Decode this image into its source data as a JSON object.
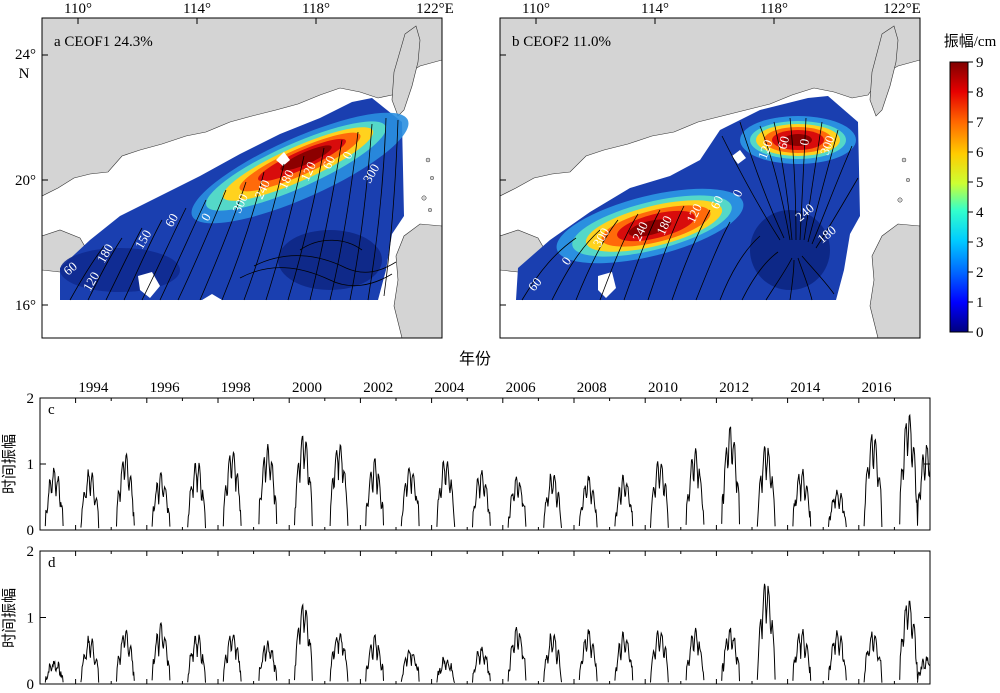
{
  "map_a": {
    "label": "a CEOF1 24.3%"
  },
  "map_b": {
    "label": "b CEOF2 11.0%"
  },
  "map_lon_ticks": [
    "110°",
    "114°",
    "118°",
    "122°E"
  ],
  "map_lat_ticks": [
    "24°",
    "20°",
    "16°"
  ],
  "map_lat_unit": "N",
  "colorbar": {
    "title": "振幅/cm",
    "ticks": [
      "9",
      "8",
      "7",
      "6",
      "5",
      "4",
      "3",
      "2",
      "1",
      "0"
    ]
  },
  "year_axis_title": "年份",
  "year_ticks": [
    "1994",
    "1996",
    "1998",
    "2000",
    "2002",
    "2004",
    "2006",
    "2008",
    "2010",
    "2012",
    "2014",
    "2016"
  ],
  "ts_c": {
    "label": "c",
    "ylabel": "时间振幅",
    "yticks": [
      "2",
      "1",
      "0"
    ]
  },
  "ts_d": {
    "label": "d",
    "ylabel": "时间振幅",
    "yticks": [
      "2",
      "1",
      "0"
    ]
  },
  "contour_labels_a": [
    "60",
    "120",
    "180",
    "150",
    "60",
    "0",
    "300",
    "240",
    "180",
    "120",
    "60",
    "0",
    "300"
  ],
  "contour_labels_b": [
    "60",
    "0",
    "300",
    "240",
    "180",
    "120",
    "60",
    "0",
    "120",
    "60",
    "0",
    "300",
    "240",
    "180"
  ],
  "chart_data": [
    {
      "type": "heatmap",
      "title": "a CEOF1 24.3%",
      "x_range_deg_E": [
        108.5,
        123
      ],
      "y_range_deg_N": [
        15.3,
        25
      ],
      "colorscale": "jet",
      "zlim": [
        0,
        9
      ],
      "unit": "振幅/cm",
      "max_amplitude_center": {
        "lon": 117,
        "lat": 20.3,
        "value": 9
      },
      "phase_contours_deg": [
        0,
        60,
        120,
        150,
        180,
        240,
        300
      ]
    },
    {
      "type": "heatmap",
      "title": "b CEOF2 11.0%",
      "x_range_deg_E": [
        108.5,
        123
      ],
      "y_range_deg_N": [
        15.3,
        25
      ],
      "colorscale": "jet",
      "zlim": [
        0,
        9
      ],
      "unit": "振幅/cm",
      "max_amplitude_centers": [
        {
          "lon": 118.5,
          "lat": 21.2,
          "value": 9
        },
        {
          "lon": 113.5,
          "lat": 18.5,
          "value": 8.5
        }
      ],
      "phase_contours_deg": [
        0,
        60,
        120,
        180,
        240,
        300
      ]
    },
    {
      "type": "line",
      "title": "c",
      "ylabel": "时间振幅",
      "xlabel": "年份",
      "xlim": [
        1993,
        2018
      ],
      "ylim": [
        0,
        2
      ],
      "season_peaks": [
        {
          "year": 1993.4,
          "peak": 0.95
        },
        {
          "year": 1994.4,
          "peak": 0.9
        },
        {
          "year": 1995.4,
          "peak": 1.15
        },
        {
          "year": 1996.4,
          "peak": 0.85
        },
        {
          "year": 1997.4,
          "peak": 1.05
        },
        {
          "year": 1998.4,
          "peak": 1.2
        },
        {
          "year": 1999.4,
          "peak": 1.3
        },
        {
          "year": 2000.4,
          "peak": 1.5
        },
        {
          "year": 2001.4,
          "peak": 1.35
        },
        {
          "year": 2002.4,
          "peak": 1.05
        },
        {
          "year": 2003.4,
          "peak": 1.0
        },
        {
          "year": 2004.4,
          "peak": 1.1
        },
        {
          "year": 2005.4,
          "peak": 0.9
        },
        {
          "year": 2006.4,
          "peak": 0.8
        },
        {
          "year": 2007.4,
          "peak": 0.85
        },
        {
          "year": 2008.4,
          "peak": 0.8
        },
        {
          "year": 2009.4,
          "peak": 0.8
        },
        {
          "year": 2010.4,
          "peak": 1.1
        },
        {
          "year": 2011.4,
          "peak": 1.2
        },
        {
          "year": 2012.4,
          "peak": 1.6
        },
        {
          "year": 2013.4,
          "peak": 1.3
        },
        {
          "year": 2014.4,
          "peak": 0.9
        },
        {
          "year": 2015.4,
          "peak": 0.6
        },
        {
          "year": 2016.4,
          "peak": 1.5
        },
        {
          "year": 2017.4,
          "peak": 1.8
        },
        {
          "year": 2017.9,
          "peak": 1.3
        }
      ]
    },
    {
      "type": "line",
      "title": "d",
      "ylabel": "时间振幅",
      "xlabel": "年份",
      "xlim": [
        1993,
        2018
      ],
      "ylim": [
        0,
        2
      ],
      "season_peaks": [
        {
          "year": 1993.4,
          "peak": 0.35
        },
        {
          "year": 1994.4,
          "peak": 0.7
        },
        {
          "year": 1995.4,
          "peak": 0.8
        },
        {
          "year": 1996.4,
          "peak": 0.9
        },
        {
          "year": 1997.4,
          "peak": 0.75
        },
        {
          "year": 1998.4,
          "peak": 0.75
        },
        {
          "year": 1999.4,
          "peak": 0.65
        },
        {
          "year": 2000.4,
          "peak": 1.25
        },
        {
          "year": 2001.4,
          "peak": 0.8
        },
        {
          "year": 2002.4,
          "peak": 0.7
        },
        {
          "year": 2003.4,
          "peak": 0.55
        },
        {
          "year": 2004.4,
          "peak": 0.4
        },
        {
          "year": 2005.4,
          "peak": 0.55
        },
        {
          "year": 2006.4,
          "peak": 0.85
        },
        {
          "year": 2007.4,
          "peak": 0.75
        },
        {
          "year": 2008.4,
          "peak": 0.8
        },
        {
          "year": 2009.4,
          "peak": 0.75
        },
        {
          "year": 2010.4,
          "peak": 0.85
        },
        {
          "year": 2011.4,
          "peak": 0.8
        },
        {
          "year": 2012.4,
          "peak": 0.85
        },
        {
          "year": 2013.4,
          "peak": 1.55
        },
        {
          "year": 2014.4,
          "peak": 0.8
        },
        {
          "year": 2015.4,
          "peak": 0.8
        },
        {
          "year": 2016.4,
          "peak": 0.8
        },
        {
          "year": 2017.4,
          "peak": 1.3
        },
        {
          "year": 2017.9,
          "peak": 0.4
        }
      ]
    }
  ]
}
